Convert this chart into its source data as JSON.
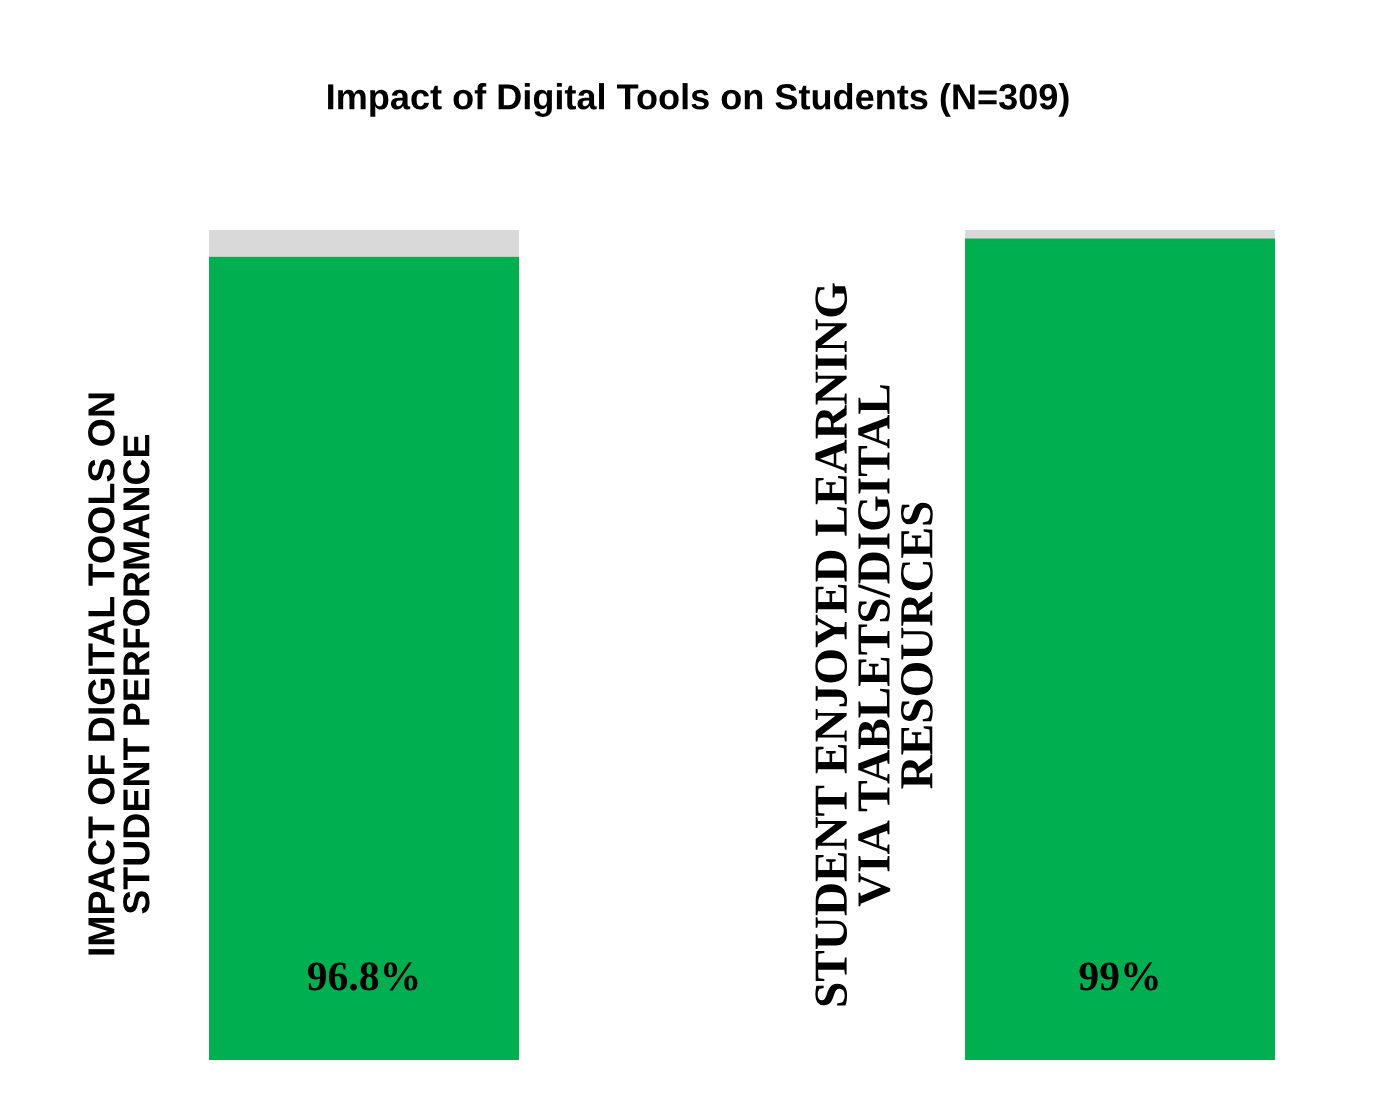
{
  "chart_data": {
    "type": "bar",
    "title": "Impact of Digital Tools on Students (N=309)",
    "categories": [
      "IMPACT OF DIGITAL TOOLS ON\nSTUDENT PERFORMANCE",
      "STUDENT ENJOYED LEARNING\nVIA TABLETS/DIGITAL\nRESOURCES"
    ],
    "stacked": true,
    "series": [
      {
        "color": "#00b050",
        "values": [
          96.8,
          99
        ],
        "value_labels": [
          "96.8%",
          "99%"
        ]
      },
      {
        "color": "#d9d9d9",
        "values": [
          3.2,
          1
        ]
      }
    ],
    "tick_labels": "x"
  }
}
